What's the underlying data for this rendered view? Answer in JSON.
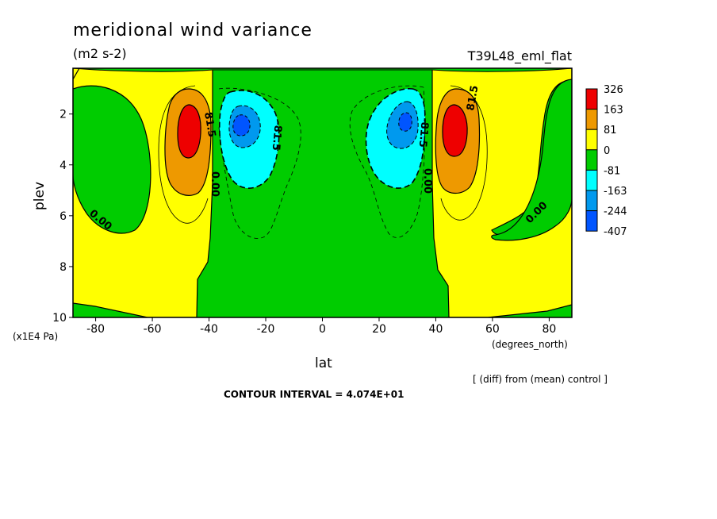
{
  "chart_data": {
    "type": "contour",
    "title": "meridional wind variance",
    "units": "(m2 s-2)",
    "experiment": "T39L48_eml_flat",
    "xlabel": "lat",
    "xunits": "(degrees_north)",
    "ylabel": "plev",
    "yunits": "(x1E4 Pa)",
    "xlim": [
      -88,
      88
    ],
    "ylim": [
      10,
      0.2
    ],
    "x_ticks": [
      -80,
      -60,
      -40,
      -20,
      0,
      20,
      40,
      60,
      80
    ],
    "y_ticks": [
      2,
      4,
      6,
      8,
      10
    ],
    "x_tick_labels": [
      "-80",
      "-60",
      "-40",
      "-20",
      "0",
      "20",
      "40",
      "60",
      "80"
    ],
    "y_tick_labels": [
      "2",
      "4",
      "6",
      "8",
      "10"
    ],
    "note": "[ (diff) from (mean) control ]",
    "contour_interval_text": "CONTOUR INTERVAL = 4.074E+01",
    "legend_levels": [
      "326",
      "163",
      "81",
      "0",
      "-81",
      "-163",
      "-244",
      "-407"
    ],
    "legend_colors": [
      "#ee0000",
      "#ee9900",
      "#ffff00",
      "#00cc00",
      "#00ffff",
      "#0099ee",
      "#0055ff"
    ],
    "contour_labels": [
      "81.5",
      "0.00",
      "-81.5",
      "-81.5",
      "0.00",
      "81.5",
      "0.00",
      "0.00"
    ],
    "features": [
      {
        "kind": "max",
        "lat": -47,
        "plev": 2.5,
        "value": 326
      },
      {
        "kind": "max",
        "lat": 46,
        "plev": 2.5,
        "value": 326
      },
      {
        "kind": "min",
        "lat": -29,
        "plev": 2.3,
        "value": -244
      },
      {
        "kind": "min",
        "lat": 30,
        "plev": 2.2,
        "value": -244
      }
    ]
  }
}
